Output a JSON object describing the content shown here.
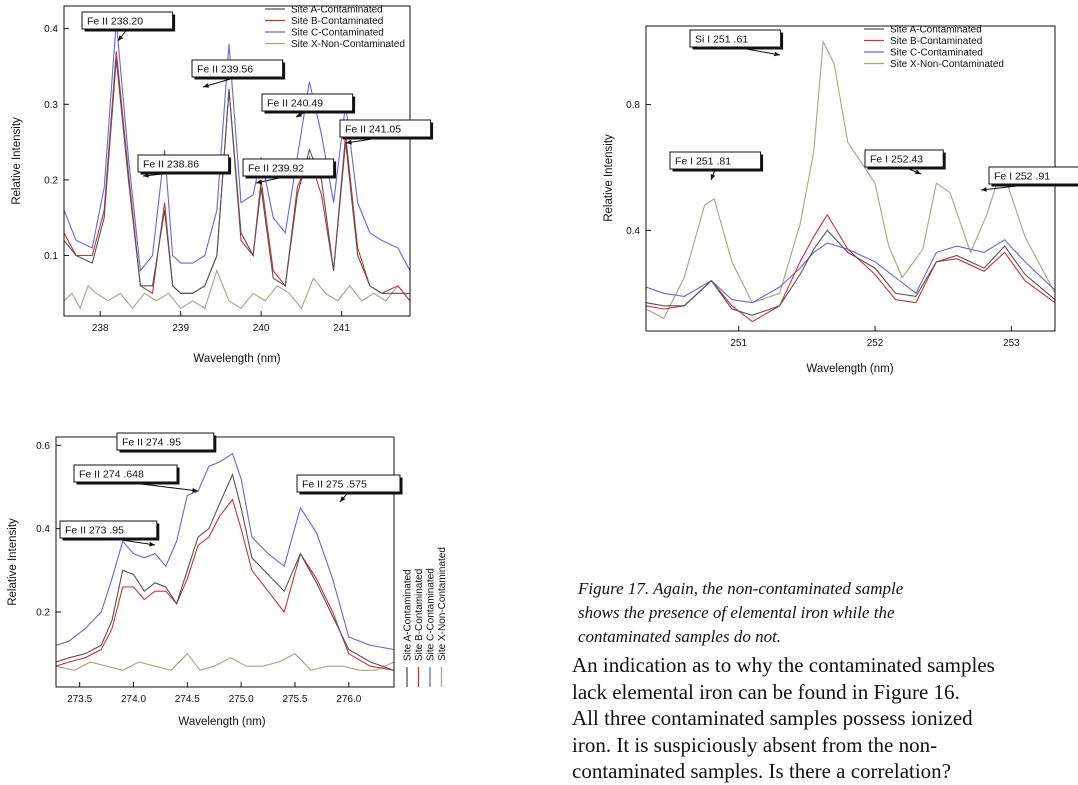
{
  "figures": [
    {
      "id": "fig1",
      "xlabel": "Wavelength (nm)",
      "ylabel": "Relative Intensity",
      "xlim": [
        237.55,
        241.85
      ],
      "ylim": [
        0.02,
        0.43
      ],
      "xticks": [
        238,
        239,
        240,
        241
      ],
      "yticks": [
        0.1,
        0.2,
        0.3,
        0.4
      ]
    },
    {
      "id": "fig2",
      "xlabel": "Wavelength (nm)",
      "ylabel": "Relative Intensity",
      "xlim": [
        250.32,
        253.32
      ],
      "ylim": [
        0.08,
        1.05
      ],
      "xticks": [
        251,
        252,
        253
      ],
      "yticks": [
        0.4,
        0.8
      ]
    },
    {
      "id": "fig3",
      "xlabel": "Wavelength (nm)",
      "ylabel": "Relative Intensity",
      "xlim": [
        273.28,
        276.42
      ],
      "ylim": [
        0.02,
        0.62
      ],
      "xticks": [
        273.5,
        274.0,
        274.5,
        275.0,
        275.5,
        276.0
      ],
      "yticks": [
        0.2,
        0.4,
        0.6
      ]
    }
  ],
  "chart_data": [
    {
      "type": "line",
      "xlabel": "Wavelength (nm)",
      "ylabel": "Relative Intensity",
      "xlim": [
        237.55,
        241.85
      ],
      "ylim": [
        0.02,
        0.43
      ],
      "legend_position": "top-right",
      "series": [
        {
          "name": "Site A-Contaminated",
          "color": "#555555",
          "x": [
            237.55,
            237.7,
            237.9,
            238.05,
            238.2,
            238.35,
            238.5,
            238.65,
            238.8,
            238.9,
            239.0,
            239.15,
            239.3,
            239.45,
            239.6,
            239.75,
            239.9,
            240.0,
            240.15,
            240.3,
            240.45,
            240.6,
            240.75,
            240.9,
            241.05,
            241.2,
            241.35,
            241.5,
            241.7,
            241.85
          ],
          "y": [
            0.12,
            0.1,
            0.09,
            0.15,
            0.36,
            0.2,
            0.06,
            0.06,
            0.16,
            0.06,
            0.05,
            0.05,
            0.06,
            0.1,
            0.32,
            0.13,
            0.1,
            0.19,
            0.07,
            0.06,
            0.18,
            0.24,
            0.2,
            0.08,
            0.25,
            0.1,
            0.06,
            0.05,
            0.05,
            0.05
          ]
        },
        {
          "name": "Site B-Contaminated",
          "color": "#cc3333",
          "x": [
            237.55,
            237.7,
            237.9,
            238.05,
            238.2,
            238.35,
            238.5,
            238.65,
            238.8,
            238.9,
            239.0,
            239.15,
            239.3,
            239.45,
            239.6,
            239.75,
            239.9,
            240.0,
            240.15,
            240.3,
            240.45,
            240.6,
            240.75,
            240.9,
            241.05,
            241.2,
            241.35,
            241.5,
            241.7,
            241.85
          ],
          "y": [
            0.13,
            0.1,
            0.1,
            0.16,
            0.37,
            0.21,
            0.06,
            0.05,
            0.17,
            0.06,
            0.05,
            0.05,
            0.06,
            0.1,
            0.32,
            0.12,
            0.1,
            0.2,
            0.08,
            0.06,
            0.19,
            0.23,
            0.18,
            0.08,
            0.26,
            0.11,
            0.06,
            0.05,
            0.06,
            0.04
          ]
        },
        {
          "name": "Site C-Contaminated",
          "color": "#6666dd",
          "x": [
            237.55,
            237.7,
            237.9,
            238.05,
            238.2,
            238.35,
            238.5,
            238.65,
            238.8,
            238.9,
            239.0,
            239.15,
            239.3,
            239.45,
            239.6,
            239.75,
            239.9,
            240.0,
            240.15,
            240.3,
            240.45,
            240.6,
            240.75,
            240.9,
            241.05,
            241.2,
            241.35,
            241.5,
            241.7,
            241.85
          ],
          "y": [
            0.16,
            0.12,
            0.11,
            0.19,
            0.41,
            0.23,
            0.08,
            0.1,
            0.24,
            0.1,
            0.09,
            0.09,
            0.1,
            0.16,
            0.38,
            0.17,
            0.18,
            0.23,
            0.15,
            0.13,
            0.23,
            0.33,
            0.26,
            0.17,
            0.3,
            0.17,
            0.13,
            0.12,
            0.11,
            0.08
          ]
        },
        {
          "name": "Site X-Non-Contaminated",
          "color": "#a8a878",
          "x": [
            237.55,
            237.65,
            237.75,
            237.85,
            237.95,
            238.1,
            238.25,
            238.4,
            238.55,
            238.7,
            238.85,
            239.0,
            239.15,
            239.3,
            239.45,
            239.6,
            239.75,
            239.9,
            240.05,
            240.2,
            240.35,
            240.5,
            240.65,
            240.8,
            240.95,
            241.1,
            241.25,
            241.4,
            241.55,
            241.7,
            241.85
          ],
          "y": [
            0.04,
            0.05,
            0.03,
            0.06,
            0.05,
            0.04,
            0.05,
            0.03,
            0.05,
            0.04,
            0.05,
            0.03,
            0.04,
            0.03,
            0.08,
            0.04,
            0.03,
            0.05,
            0.04,
            0.06,
            0.05,
            0.03,
            0.07,
            0.05,
            0.04,
            0.06,
            0.04,
            0.05,
            0.04,
            0.06,
            0.04
          ]
        }
      ],
      "annotations": [
        {
          "text": "Fe II  238.20",
          "x": 238.2,
          "y": 0.41
        },
        {
          "text": "Fe II  238.86",
          "x": 238.86,
          "y": 0.24
        },
        {
          "text": "Fe II  239.56",
          "x": 239.56,
          "y": 0.38
        },
        {
          "text": "Fe II  239.92",
          "x": 239.92,
          "y": 0.2
        },
        {
          "text": "Fe II  240.49",
          "x": 240.49,
          "y": 0.33
        },
        {
          "text": "Fe II  241.05",
          "x": 241.05,
          "y": 0.3
        }
      ]
    },
    {
      "type": "line",
      "xlabel": "Wavelength (nm)",
      "ylabel": "Relative Intensity",
      "xlim": [
        250.32,
        253.32
      ],
      "ylim": [
        0.08,
        1.05
      ],
      "legend_position": "top-right",
      "series": [
        {
          "name": "Site A-Contaminated",
          "color": "#555555",
          "x": [
            250.32,
            250.45,
            250.6,
            250.8,
            250.95,
            251.1,
            251.3,
            251.45,
            251.55,
            251.65,
            251.8,
            252.0,
            252.15,
            252.3,
            252.45,
            252.6,
            252.8,
            252.95,
            253.1,
            253.32
          ],
          "y": [
            0.17,
            0.16,
            0.16,
            0.24,
            0.15,
            0.13,
            0.16,
            0.26,
            0.34,
            0.4,
            0.33,
            0.28,
            0.2,
            0.19,
            0.3,
            0.32,
            0.28,
            0.35,
            0.26,
            0.18
          ]
        },
        {
          "name": "Site B-Contaminated",
          "color": "#cc3333",
          "x": [
            250.32,
            250.45,
            250.6,
            250.8,
            250.95,
            251.1,
            251.3,
            251.45,
            251.55,
            251.65,
            251.8,
            252.0,
            252.15,
            252.3,
            252.45,
            252.6,
            252.8,
            252.95,
            253.1,
            253.32
          ],
          "y": [
            0.16,
            0.15,
            0.16,
            0.24,
            0.16,
            0.11,
            0.16,
            0.3,
            0.38,
            0.45,
            0.34,
            0.26,
            0.18,
            0.17,
            0.3,
            0.31,
            0.27,
            0.33,
            0.24,
            0.17
          ]
        },
        {
          "name": "Site C-Contaminated",
          "color": "#6666dd",
          "x": [
            250.32,
            250.45,
            250.6,
            250.8,
            250.95,
            251.1,
            251.3,
            251.45,
            251.55,
            251.65,
            251.8,
            252.0,
            252.15,
            252.3,
            252.45,
            252.6,
            252.8,
            252.95,
            253.1,
            253.32
          ],
          "y": [
            0.22,
            0.2,
            0.19,
            0.24,
            0.18,
            0.17,
            0.22,
            0.28,
            0.33,
            0.36,
            0.34,
            0.3,
            0.25,
            0.2,
            0.33,
            0.35,
            0.33,
            0.37,
            0.3,
            0.21
          ]
        },
        {
          "name": "Site X-Non-Contaminated",
          "color": "#a8a878",
          "x": [
            250.32,
            250.45,
            250.6,
            250.75,
            250.82,
            250.95,
            251.1,
            251.3,
            251.45,
            251.55,
            251.62,
            251.7,
            251.8,
            252.0,
            252.1,
            252.2,
            252.35,
            252.45,
            252.55,
            252.7,
            252.82,
            252.93,
            253.1,
            253.32
          ],
          "y": [
            0.15,
            0.12,
            0.25,
            0.48,
            0.5,
            0.3,
            0.17,
            0.2,
            0.42,
            0.65,
            1.0,
            0.93,
            0.68,
            0.55,
            0.35,
            0.25,
            0.34,
            0.55,
            0.52,
            0.33,
            0.45,
            0.6,
            0.38,
            0.2
          ]
        }
      ],
      "annotations": [
        {
          "text": "Si I  251 .61",
          "x": 251.61,
          "y": 0.98
        },
        {
          "text": "Fe I  251 .81",
          "x": 250.82,
          "y": 0.5
        },
        {
          "text": "Fe I 252.43",
          "x": 252.43,
          "y": 0.55
        },
        {
          "text": "Fe I  252 .91",
          "x": 252.93,
          "y": 0.6
        }
      ]
    },
    {
      "type": "line",
      "xlabel": "Wavelength (nm)",
      "ylabel": "Relative Intensity",
      "xlim": [
        273.28,
        276.42
      ],
      "ylim": [
        0.02,
        0.62
      ],
      "legend_position": "right (vertical)",
      "series": [
        {
          "name": "Site A-Contaminated",
          "color": "#555555",
          "x": [
            273.28,
            273.4,
            273.55,
            273.7,
            273.8,
            273.9,
            274.0,
            274.1,
            274.2,
            274.3,
            274.4,
            274.5,
            274.6,
            274.7,
            274.8,
            274.92,
            275.0,
            275.1,
            275.25,
            275.4,
            275.55,
            275.7,
            275.85,
            276.0,
            276.2,
            276.42
          ],
          "y": [
            0.08,
            0.09,
            0.1,
            0.12,
            0.18,
            0.3,
            0.29,
            0.25,
            0.27,
            0.26,
            0.22,
            0.3,
            0.38,
            0.4,
            0.46,
            0.53,
            0.45,
            0.33,
            0.29,
            0.25,
            0.34,
            0.27,
            0.19,
            0.11,
            0.08,
            0.06
          ]
        },
        {
          "name": "Site B-Contaminated",
          "color": "#cc3333",
          "x": [
            273.28,
            273.4,
            273.55,
            273.7,
            273.8,
            273.9,
            274.0,
            274.1,
            274.2,
            274.3,
            274.4,
            274.5,
            274.6,
            274.7,
            274.8,
            274.92,
            275.0,
            275.1,
            275.25,
            275.4,
            275.55,
            275.7,
            275.85,
            276.0,
            276.2,
            276.42
          ],
          "y": [
            0.07,
            0.08,
            0.09,
            0.11,
            0.16,
            0.26,
            0.26,
            0.23,
            0.25,
            0.25,
            0.22,
            0.28,
            0.36,
            0.38,
            0.43,
            0.47,
            0.4,
            0.3,
            0.25,
            0.2,
            0.34,
            0.28,
            0.2,
            0.1,
            0.07,
            0.06
          ]
        },
        {
          "name": "Site C-Contaminated",
          "color": "#6666dd",
          "x": [
            273.28,
            273.4,
            273.55,
            273.7,
            273.8,
            273.9,
            274.0,
            274.1,
            274.2,
            274.3,
            274.4,
            274.5,
            274.6,
            274.7,
            274.8,
            274.92,
            275.0,
            275.1,
            275.25,
            275.4,
            275.55,
            275.7,
            275.85,
            276.0,
            276.2,
            276.42
          ],
          "y": [
            0.12,
            0.13,
            0.16,
            0.2,
            0.28,
            0.37,
            0.34,
            0.33,
            0.34,
            0.31,
            0.37,
            0.48,
            0.49,
            0.55,
            0.56,
            0.58,
            0.52,
            0.38,
            0.34,
            0.31,
            0.45,
            0.39,
            0.28,
            0.14,
            0.12,
            0.11
          ]
        },
        {
          "name": "Site X-Non-Contaminated",
          "color": "#a8a878",
          "x": [
            273.28,
            273.45,
            273.6,
            273.75,
            273.9,
            274.05,
            274.2,
            274.35,
            274.5,
            274.62,
            274.75,
            274.9,
            275.05,
            275.2,
            275.35,
            275.5,
            275.65,
            275.8,
            275.95,
            276.1,
            276.25,
            276.42
          ],
          "y": [
            0.07,
            0.06,
            0.08,
            0.07,
            0.06,
            0.08,
            0.07,
            0.06,
            0.1,
            0.06,
            0.07,
            0.09,
            0.07,
            0.07,
            0.08,
            0.1,
            0.06,
            0.07,
            0.07,
            0.06,
            0.06,
            0.08
          ]
        }
      ],
      "annotations": [
        {
          "text": "Fe II  274 .95",
          "x": 274.92,
          "y": 0.58
        },
        {
          "text": "Fe II  274 .648",
          "x": 274.63,
          "y": 0.49
        },
        {
          "text": "Fe II  275 .575",
          "x": 275.55,
          "y": 0.45
        },
        {
          "text": "Fe II  273 .95",
          "x": 273.92,
          "y": 0.37
        }
      ]
    }
  ],
  "caption_lines": [
    "Figure 17.  Again, the non-contaminated sample",
    "shows the presence of elemental iron while the",
    "contaminated samples do not."
  ],
  "body_lines": [
    "An indication as to why the contaminated samples",
    "lack elemental iron can be found in Figure 16.",
    "All three contaminated samples possess ionized",
    "iron.  It is suspiciously absent from the non-",
    "contaminated samples.  Is there a correlation?"
  ]
}
